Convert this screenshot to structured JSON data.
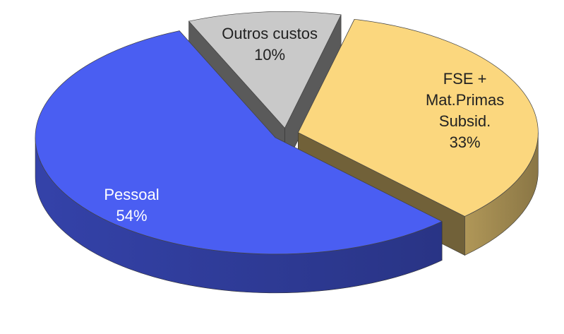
{
  "chart_data": {
    "type": "pie3d",
    "categories": [
      "Outros custos",
      "FSE + Mat.Primas Subsid.",
      "Pessoal"
    ],
    "values": [
      10,
      33,
      54
    ],
    "value_labels": [
      "10%",
      "33%",
      "54%"
    ],
    "colors": [
      "#c9c9c9",
      "#fbd77e",
      "#4a5ef2"
    ]
  }
}
